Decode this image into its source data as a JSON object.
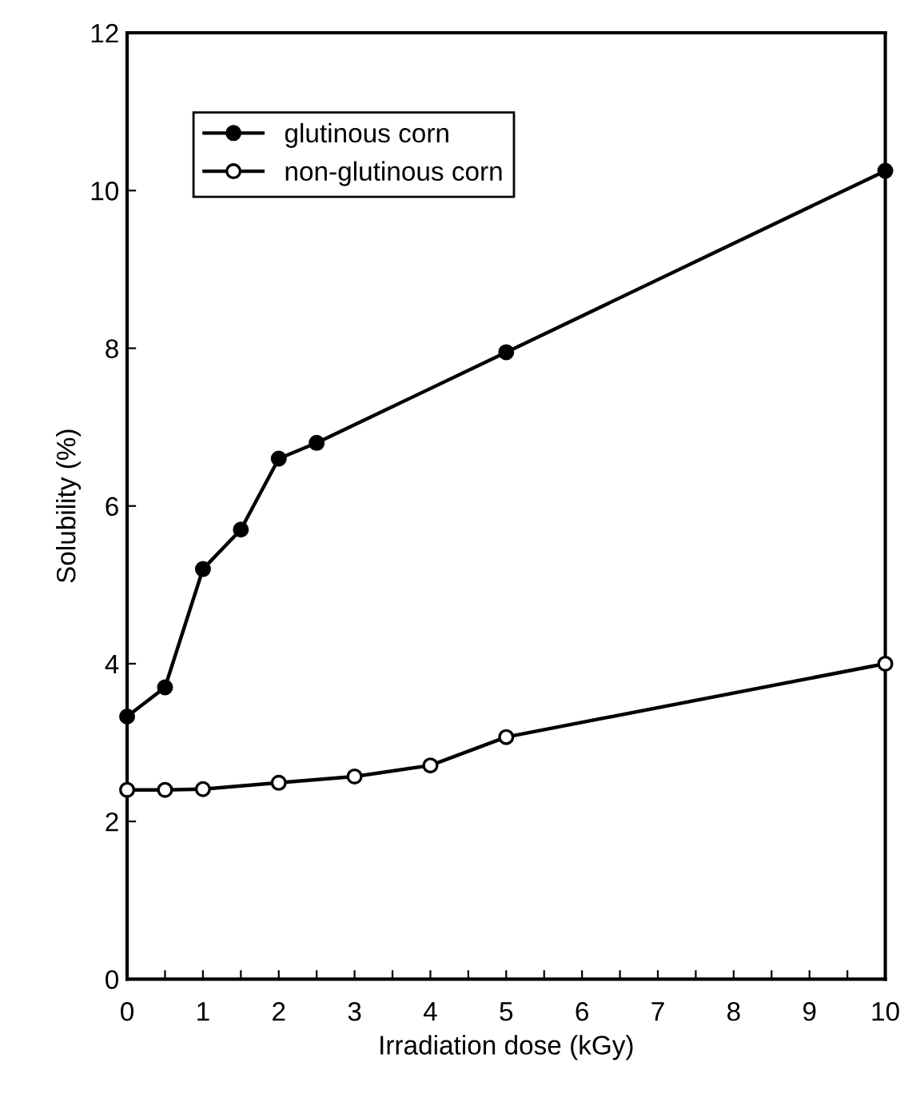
{
  "chart_data": {
    "type": "line",
    "xlabel": "Irradiation dose (kGy)",
    "ylabel": "Solubility (%)",
    "series": [
      {
        "name": "glutinous corn",
        "color": "#000000",
        "marker": "circle",
        "x": [
          0,
          0.5,
          1,
          1.5,
          2,
          2.5,
          5,
          10
        ],
        "values": [
          3.33,
          3.7,
          5.2,
          5.7,
          6.6,
          6.8,
          7.95,
          10.25
        ]
      },
      {
        "name": "non-glutinous corn",
        "color": "#000000",
        "marker": "circle",
        "x": [
          0,
          0.5,
          1,
          2,
          3,
          4,
          5,
          10
        ],
        "values": [
          2.4,
          2.4,
          2.41,
          2.49,
          2.57,
          2.71,
          3.07,
          4.0
        ]
      }
    ],
    "xlim": [
      0,
      10
    ],
    "ylim": [
      0,
      12
    ],
    "xticks": [
      0,
      {
        "value": 0.5,
        "label": null
      },
      1,
      {
        "value": 1.5,
        "label": null
      },
      2,
      {
        "value": 2.5,
        "label": null
      },
      3,
      {
        "value": 3.5,
        "label": null
      },
      4,
      {
        "value": 4.5,
        "label": null
      },
      5,
      {
        "value": 5.5,
        "label": null
      },
      6,
      {
        "value": 6.5,
        "label": null
      },
      7,
      {
        "value": 7.5,
        "label": null
      },
      8,
      {
        "value": 8.5,
        "label": null
      },
      9,
      {
        "value": 9.5,
        "label": null
      },
      10
    ],
    "yticks": [
      0,
      2,
      4,
      6,
      8,
      10,
      12
    ],
    "grid": false,
    "legend": "top left",
    "line_style": "solid"
  }
}
